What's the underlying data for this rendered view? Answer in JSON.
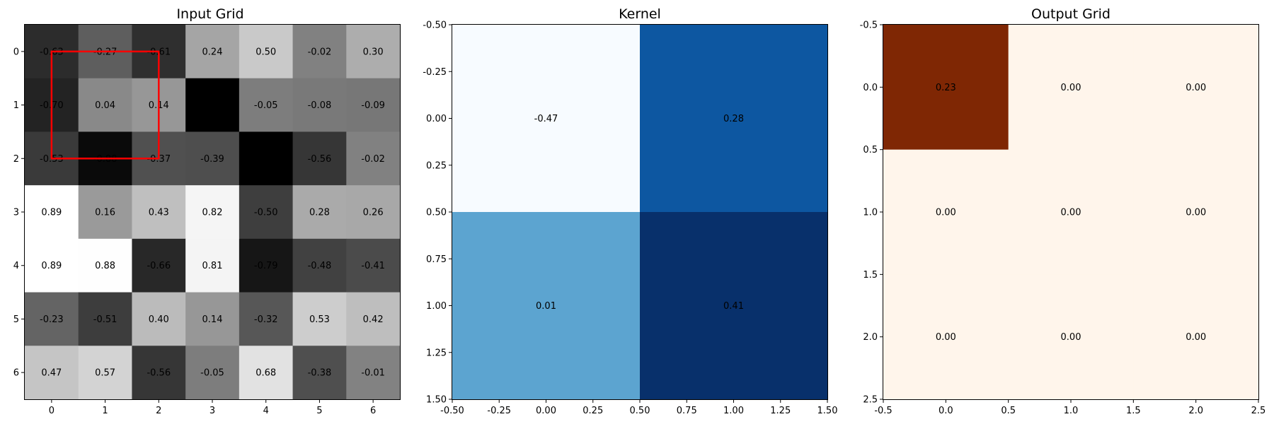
{
  "chart_data": [
    {
      "type": "heatmap",
      "title": "Input Grid",
      "colormap": "gray",
      "rows": [
        0,
        1,
        2,
        3,
        4,
        5,
        6
      ],
      "cols": [
        0,
        1,
        2,
        3,
        4,
        5,
        6
      ],
      "values": [
        [
          -0.63,
          -0.27,
          -0.61,
          0.24,
          0.5,
          -0.02,
          0.3
        ],
        [
          -0.7,
          0.04,
          0.14,
          -0.95,
          -0.05,
          -0.08,
          -0.09
        ],
        [
          -0.53,
          -0.88,
          -0.37,
          -0.39,
          -0.95,
          -0.56,
          -0.02
        ],
        [
          0.89,
          0.16,
          0.43,
          0.82,
          -0.5,
          0.28,
          0.26
        ],
        [
          0.89,
          0.88,
          -0.66,
          0.81,
          -0.79,
          -0.48,
          -0.41
        ],
        [
          -0.23,
          -0.51,
          0.4,
          0.14,
          -0.32,
          0.53,
          0.42
        ],
        [
          0.47,
          0.57,
          -0.56,
          -0.05,
          0.68,
          -0.38,
          -0.01
        ]
      ],
      "labels": [
        [
          "-0.63",
          "-0.27",
          "-0.61",
          "0.24",
          "0.50",
          "-0.02",
          "0.30"
        ],
        [
          "-0.70",
          "0.04",
          "0.14",
          "",
          "-0.05",
          "-0.08",
          "-0.09"
        ],
        [
          "-0.53",
          "-0.88",
          "-0.37",
          "-0.39",
          "",
          "-0.56",
          "-0.02"
        ],
        [
          "0.89",
          "0.16",
          "0.43",
          "0.82",
          "-0.50",
          "0.28",
          "0.26"
        ],
        [
          "0.89",
          "0.88",
          "-0.66",
          "0.81",
          "-0.79",
          "-0.48",
          "-0.41"
        ],
        [
          "-0.23",
          "-0.51",
          "0.40",
          "0.14",
          "-0.32",
          "0.53",
          "0.42"
        ],
        [
          "0.47",
          "0.57",
          "-0.56",
          "-0.05",
          "0.68",
          "-0.38",
          "-0.01"
        ]
      ],
      "vmin": -0.95,
      "vmax": 0.89,
      "xticks": [
        "0",
        "1",
        "2",
        "3",
        "4",
        "5",
        "6"
      ],
      "yticks": [
        "0",
        "1",
        "2",
        "3",
        "4",
        "5",
        "6"
      ],
      "highlight": {
        "row_start": 0,
        "col_start": 0,
        "rows": 2,
        "cols": 2,
        "color": "#ff0000"
      }
    },
    {
      "type": "heatmap",
      "title": "Kernel",
      "colormap": "Blues",
      "values": [
        [
          -0.47,
          0.28
        ],
        [
          0.01,
          0.41
        ]
      ],
      "labels": [
        [
          "-0.47",
          "0.28"
        ],
        [
          "0.01",
          "0.41"
        ]
      ],
      "vmin": -0.47,
      "vmax": 0.41,
      "xlim": [
        -0.5,
        1.5
      ],
      "ylim": [
        1.5,
        -0.5
      ],
      "xticks": [
        "-0.50",
        "-0.25",
        "0.00",
        "0.25",
        "0.50",
        "0.75",
        "1.00",
        "1.25",
        "1.50"
      ],
      "xtick_values": [
        -0.5,
        -0.25,
        0.0,
        0.25,
        0.5,
        0.75,
        1.0,
        1.25,
        1.5
      ],
      "yticks": [
        "-0.50",
        "-0.25",
        "0.00",
        "0.25",
        "0.50",
        "0.75",
        "1.00",
        "1.25",
        "1.50"
      ],
      "ytick_values": [
        -0.5,
        -0.25,
        0.0,
        0.25,
        0.5,
        0.75,
        1.0,
        1.25,
        1.5
      ]
    },
    {
      "type": "heatmap",
      "title": "Output Grid",
      "colormap": "Oranges",
      "values": [
        [
          0.23,
          0.0,
          0.0
        ],
        [
          0.0,
          0.0,
          0.0
        ],
        [
          0.0,
          0.0,
          0.0
        ]
      ],
      "labels": [
        [
          "0.23",
          "0.00",
          "0.00"
        ],
        [
          "0.00",
          "0.00",
          "0.00"
        ],
        [
          "0.00",
          "0.00",
          "0.00"
        ]
      ],
      "vmin": 0.0,
      "vmax": 0.23,
      "xlim": [
        -0.5,
        2.5
      ],
      "ylim": [
        2.5,
        -0.5
      ],
      "xticks": [
        "-0.5",
        "0.0",
        "0.5",
        "1.0",
        "1.5",
        "2.0",
        "2.5"
      ],
      "xtick_values": [
        -0.5,
        0.0,
        0.5,
        1.0,
        1.5,
        2.0,
        2.5
      ],
      "yticks": [
        "-0.5",
        "0.0",
        "0.5",
        "1.0",
        "1.5",
        "2.0",
        "2.5"
      ],
      "ytick_values": [
        -0.5,
        0.0,
        0.5,
        1.0,
        1.5,
        2.0,
        2.5
      ],
      "filled_cells": [
        [
          0,
          0
        ]
      ],
      "fill_color": "#7f2704",
      "empty_color": "#fff5eb"
    }
  ]
}
